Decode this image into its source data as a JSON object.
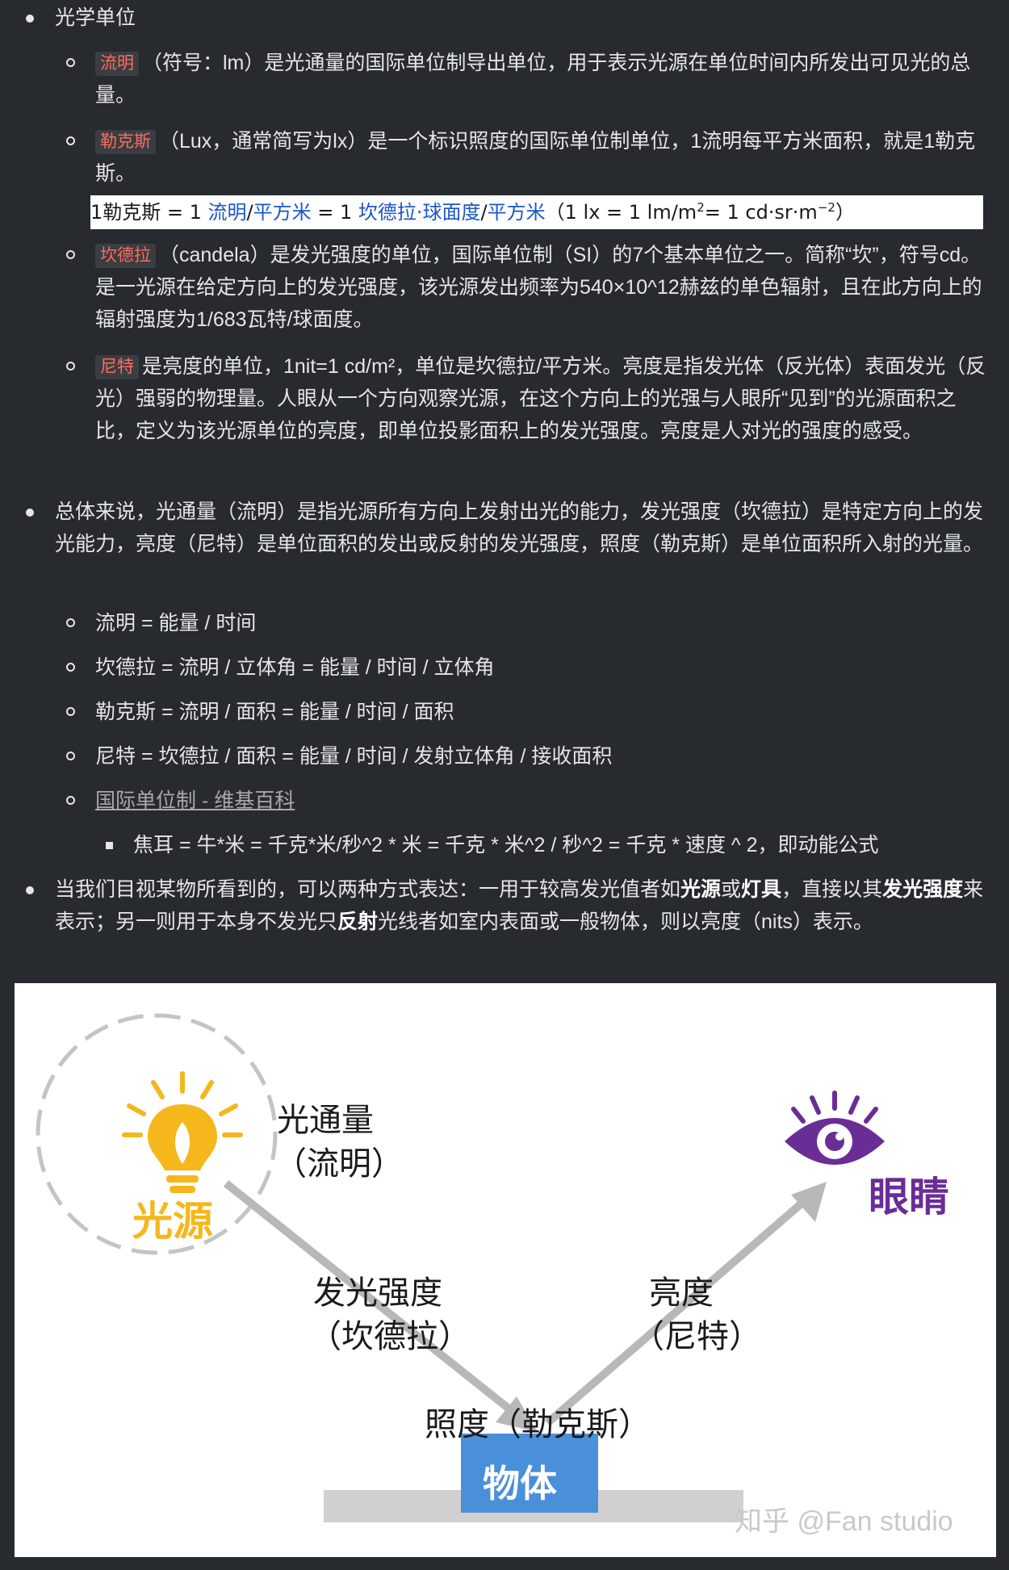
{
  "section1": {
    "title": "光学单位",
    "items": [
      {
        "tag": "流明",
        "text": "（符号：lm）是光通量的国际单位制导出单位，用于表示光源在单位时间内所发出可见光的总量。"
      },
      {
        "tag": "勒克斯",
        "text": "（Lux，通常简写为lx）是一个标识照度的国际单位制单位，1流明每平方米面积，就是1勒克斯。"
      },
      {
        "tag": "坎德拉",
        "text": "（candela）是发光强度的单位，国际单位制（SI）的7个基本单位之一。简称“坎”，符号cd。是一光源在给定方向上的发光强度，该光源发出频率为540×10^12赫兹的单色辐射，且在此方向上的辐射强度为1/683瓦特/球面度。"
      },
      {
        "tag": "尼特",
        "text": "是亮度的单位，1nit=1 cd/m²，单位是坎德拉/平方米。亮度是指发光体（反光体）表面发光（反光）强弱的物理量。人眼从一个方向观察光源，在这个方向上的光强与人眼所“见到”的光源面积之比，定义为该光源单位的亮度，即单位投影面积上的发光强度。亮度是人对光的强度的感受。"
      }
    ],
    "formula": {
      "p1": "1勒克斯 = 1 ",
      "lumen": "流明",
      "slash1": "/",
      "sqm": "平方米",
      "p2": " = 1 ",
      "cdsr": "坎德拉·球面度",
      "slash2": "/",
      "sqm2": "平方米",
      "p3": "（1 lx = 1 lm/m",
      "sup1": "2",
      "p4": "= 1 cd·sr·m",
      "sup2": "−2",
      "p5": "）"
    }
  },
  "section2": {
    "text": "总体来说，光通量（流明）是指光源所有方向上发射出光的能力，发光强度（坎德拉）是特定方向上的发光能力，亮度（尼特）是单位面积的发出或反射的发光强度，照度（勒克斯）是单位面积所入射的光量。",
    "formulas": [
      "流明 = 能量 / 时间",
      "坎德拉 = 流明 / 立体角 = 能量 / 时间 / 立体角",
      "勒克斯 = 流明 / 面积 = 能量 / 时间 / 面积",
      "尼特 = 坎德拉 / 面积 = 能量 / 时间 / 发射立体角 / 接收面积"
    ],
    "link": "国际单位制 - 维基百科",
    "sub_formula": "焦耳 = 牛*米 = 千克*米/秒^2 * 米 = 千克 * 米^2 / 秒^2 = 千克 * 速度 ^ 2，即动能公式"
  },
  "section3": {
    "t1": "当我们目视某物所看到的，可以两种方式表达：一用于较高发光值者如",
    "b1": "光源",
    "t2": "或",
    "b2": "灯具",
    "t3": "，直接以其",
    "b3": "发光强度",
    "t4": "来表示；另一则用于本身不发光只",
    "b4": "反射",
    "t5": "光线者如室内表面或一般物体，则以亮度（nits）表示。"
  },
  "figure": {
    "flux_line1": "光通量",
    "flux_line2": "（流明）",
    "source": "光源",
    "eye": "眼睛",
    "intensity_line1": "发光强度",
    "intensity_line2": "（坎德拉）",
    "luminance_line1": "亮度",
    "luminance_line2": "（尼特）",
    "illuminance": "照度（勒克斯）",
    "object": "物体",
    "watermark": "知乎 @Fan studio",
    "colors": {
      "source": "#f5b71c",
      "eye": "#6a2d96",
      "object": "#4a8fd9",
      "arrow": "#b8b8b8"
    }
  }
}
